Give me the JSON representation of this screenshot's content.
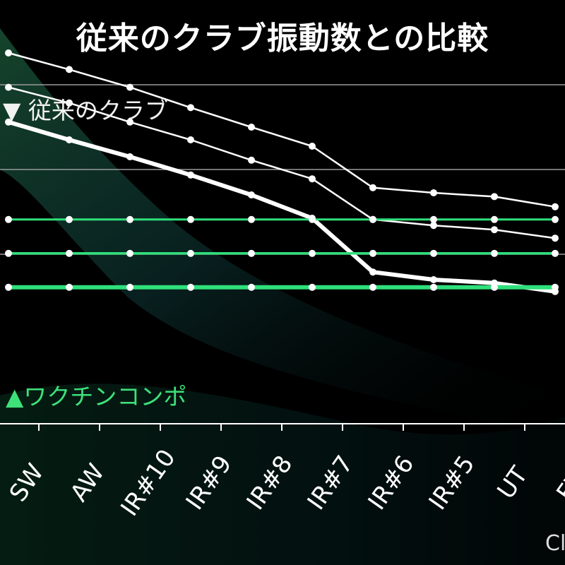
{
  "title": "従来のクラブ振動数との比較",
  "legend": {
    "conventional_label": "▼ 従来のクラブ",
    "wakuchin_label": "▲ワクチンコンポ"
  },
  "unit_label": "Cl",
  "colors": {
    "background": "#000000",
    "conventional": "#ffffff",
    "wakuchin": "#2fe07a",
    "gridline": "#9a9a9a"
  },
  "chart_data": {
    "type": "line",
    "title": "従来のクラブ振動数との比較",
    "categories": [
      "SW",
      "AW",
      "IR#10",
      "IR#9",
      "IR#8",
      "IR#7",
      "IR#6",
      "IR#5",
      "UT",
      "FW"
    ],
    "ylim": [
      0,
      100
    ],
    "grid": true,
    "legend_placement": "left",
    "series": [
      {
        "group": "従来のクラブ",
        "values": [
          87.5,
          83.6,
          79.4,
          74.6,
          70.0,
          65.5,
          55.7,
          54.5,
          53.6,
          51.2
        ]
      },
      {
        "group": "従来のクラブ",
        "values": [
          79.4,
          75.7,
          71.2,
          67.0,
          62.2,
          57.8,
          48.2,
          46.8,
          45.8,
          43.8
        ]
      },
      {
        "group": "従来のクラブ",
        "values": [
          71.2,
          67.0,
          63.0,
          58.7,
          54.0,
          48.5,
          35.8,
          34.0,
          33.2,
          31.2
        ]
      },
      {
        "group": "ワクチンコンポ",
        "values": [
          48.2,
          48.2,
          48.2,
          48.2,
          48.2,
          48.2,
          48.2,
          48.2,
          48.2,
          48.2
        ]
      },
      {
        "group": "ワクチンコンポ",
        "values": [
          40.2,
          40.2,
          40.2,
          40.2,
          40.2,
          40.2,
          40.2,
          40.2,
          40.2,
          40.2
        ]
      },
      {
        "group": "ワクチンコンポ",
        "values": [
          32.2,
          32.2,
          32.2,
          32.2,
          32.2,
          32.2,
          32.2,
          32.2,
          32.2,
          32.2
        ]
      }
    ]
  }
}
